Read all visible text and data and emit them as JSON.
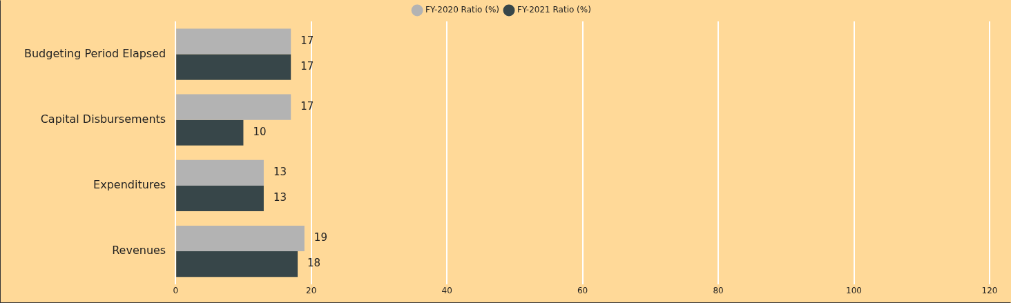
{
  "chart_data": {
    "type": "bar",
    "orientation": "horizontal",
    "categories": [
      "Budgeting Period Elapsed",
      "Capital Disbursements",
      "Expenditures",
      "Revenues"
    ],
    "series": [
      {
        "name": "FY-2020 Ratio (%)",
        "color": "#b3b3b3",
        "values": [
          17,
          17,
          13,
          19
        ]
      },
      {
        "name": "FY-2021 Ratio (%)",
        "color": "#374649",
        "values": [
          17,
          10,
          13,
          18
        ]
      }
    ],
    "xlim": [
      0,
      120
    ],
    "xticks": [
      0,
      20,
      40,
      60,
      80,
      100,
      120
    ],
    "grid": "x",
    "legend": "top",
    "data_labels": true
  }
}
